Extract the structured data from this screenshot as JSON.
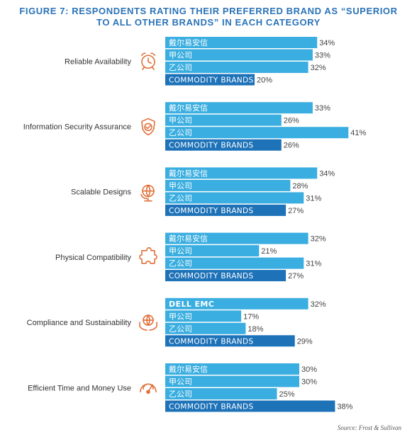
{
  "title_line1": "FIGURE 7: RESPONDENTS RATING THEIR PREFERRED BRAND AS “SUPERIOR",
  "title_line2": "TO ALL OTHER BRANDS” IN EACH CATEGORY",
  "source": "Source: Frost & Sullivan",
  "colors": {
    "brand_bar": "#3aaee0",
    "commodity_bar": "#1d72b8",
    "label_text": "#ffffff",
    "value_text": "#444444",
    "icon": "#e0703a"
  },
  "chart_data": {
    "type": "bar",
    "orientation": "horizontal",
    "value_format": "percent",
    "groups": [
      {
        "category": "Reliable Availability",
        "icon": "alarm-clock-icon",
        "bars": [
          {
            "label": "戴尔易安信",
            "value": 34
          },
          {
            "label": "甲公司",
            "value": 33
          },
          {
            "label": "乙公司",
            "value": 32
          },
          {
            "label": "COMMODITY BRANDS",
            "value": 20,
            "commodity": true
          }
        ]
      },
      {
        "category": "Information Security Assurance",
        "icon": "shield-check-icon",
        "bars": [
          {
            "label": "戴尔易安信",
            "value": 33
          },
          {
            "label": "甲公司",
            "value": 26
          },
          {
            "label": "乙公司",
            "value": 41
          },
          {
            "label": "COMMODITY BRANDS",
            "value": 26,
            "commodity": true
          }
        ]
      },
      {
        "category": "Scalable Designs",
        "icon": "globe-icon",
        "bars": [
          {
            "label": "戴尔易安信",
            "value": 34
          },
          {
            "label": "甲公司",
            "value": 28
          },
          {
            "label": "乙公司",
            "value": 31
          },
          {
            "label": "COMMODITY BRANDS",
            "value": 27,
            "commodity": true
          }
        ]
      },
      {
        "category": "Physical Compatibility",
        "icon": "puzzle-icon",
        "bars": [
          {
            "label": "戴尔易安信",
            "value": 32
          },
          {
            "label": "甲公司",
            "value": 21
          },
          {
            "label": "乙公司",
            "value": 31
          },
          {
            "label": "COMMODITY BRANDS",
            "value": 27,
            "commodity": true
          }
        ]
      },
      {
        "category": "Compliance and Sustainability",
        "icon": "hands-globe-icon",
        "bars": [
          {
            "label": "DELL EMC",
            "value": 32,
            "bold": true
          },
          {
            "label": "甲公司",
            "value": 17
          },
          {
            "label": "乙公司",
            "value": 18
          },
          {
            "label": "COMMODITY BRANDS",
            "value": 29,
            "commodity": true
          }
        ]
      },
      {
        "category": "Efficient Time and Money Use",
        "icon": "gauge-icon",
        "bars": [
          {
            "label": "戴尔易安信",
            "value": 30
          },
          {
            "label": "甲公司",
            "value": 30
          },
          {
            "label": "乙公司",
            "value": 25
          },
          {
            "label": "COMMODITY BRANDS",
            "value": 38,
            "commodity": true
          }
        ]
      }
    ]
  }
}
